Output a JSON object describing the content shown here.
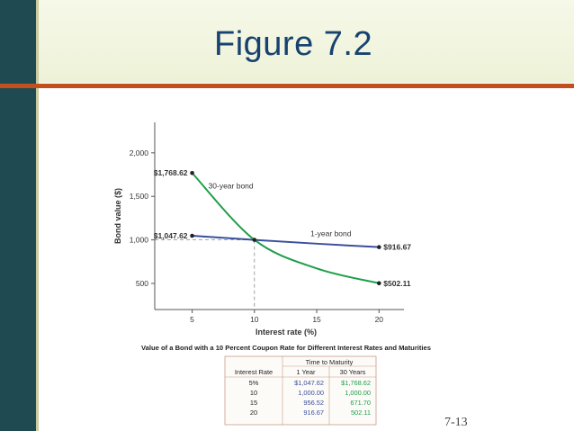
{
  "slide": {
    "title": "Figure 7.2",
    "page_number": "7-13"
  },
  "colors": {
    "sidebar": "#1f4a52",
    "accent_rule": "#c1501e",
    "title_text": "#17426f",
    "series_30yr": "#1f9e4a",
    "series_1yr": "#3b4f9c"
  },
  "chart_data": {
    "type": "line",
    "title": "",
    "caption": "Value of a Bond with a 10 Percent Coupon Rate for Different Interest Rates and Maturities",
    "xlabel": "Interest rate (%)",
    "ylabel": "Bond value ($)",
    "xlim": [
      2,
      22
    ],
    "ylim": [
      200,
      2350
    ],
    "xticks": [
      5,
      10,
      15,
      20
    ],
    "yticks": [
      500,
      1000,
      1500,
      2000
    ],
    "ytick_labels": [
      "500",
      "1,000",
      "1,500",
      "2,000"
    ],
    "grid": false,
    "series": [
      {
        "name": "30-year bond",
        "color": "#1f9e4a",
        "points": [
          [
            5,
            1768.62
          ],
          [
            10,
            1000.0
          ],
          [
            15,
            671.7
          ],
          [
            20,
            502.11
          ]
        ]
      },
      {
        "name": "1-year bond",
        "color": "#3b4f9c",
        "points": [
          [
            5,
            1047.62
          ],
          [
            10,
            1000.0
          ],
          [
            15,
            956.52
          ],
          [
            20,
            916.67
          ]
        ]
      }
    ],
    "reference_lines": {
      "x": 10,
      "y": 1000
    },
    "endpoint_labels": [
      {
        "x": 5,
        "y": 1768.62,
        "text": "$1,768.62",
        "side": "left"
      },
      {
        "x": 5,
        "y": 1047.62,
        "text": "$1,047.62",
        "side": "left"
      },
      {
        "x": 20,
        "y": 916.67,
        "text": "$916.67",
        "side": "right"
      },
      {
        "x": 20,
        "y": 502.11,
        "text": "$502.11",
        "side": "right"
      }
    ],
    "table": {
      "header_group": "Time to Maturity",
      "columns": [
        "Interest Rate",
        "1 Year",
        "30 Years"
      ],
      "rows": [
        [
          "5%",
          "$1,047.62",
          "$1,768.62"
        ],
        [
          "10",
          "1,000.00",
          "1,000.00"
        ],
        [
          "15",
          "956.52",
          "671.70"
        ],
        [
          "20",
          "916.67",
          "502.11"
        ]
      ]
    }
  }
}
